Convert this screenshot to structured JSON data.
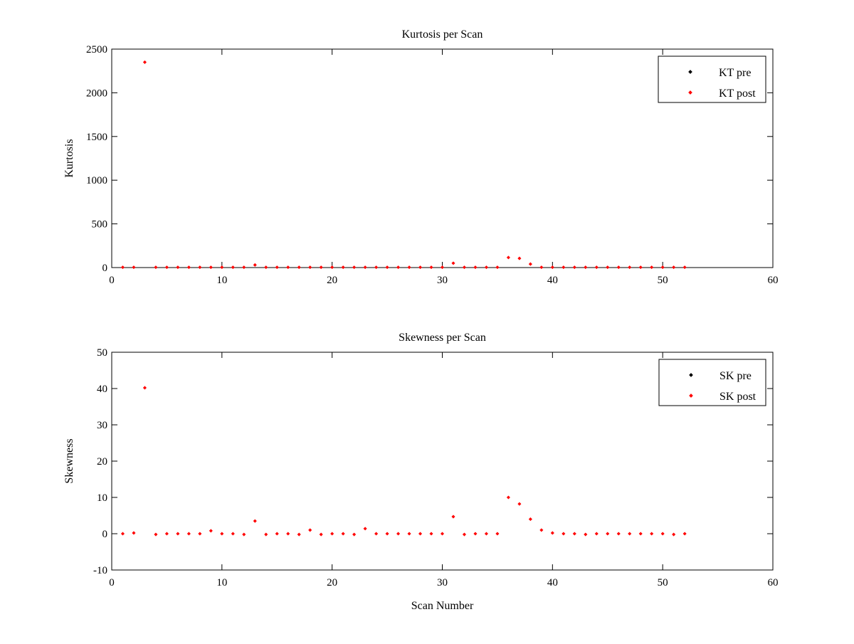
{
  "figure": {
    "background": "#ffffff"
  },
  "chart_data": [
    {
      "type": "scatter",
      "title": "Kurtosis per Scan",
      "xlabel": "",
      "ylabel": "Kurtosis",
      "xlim": [
        0,
        60
      ],
      "ylim": [
        0,
        2500
      ],
      "xticks": [
        0,
        10,
        20,
        30,
        40,
        50,
        60
      ],
      "yticks": [
        0,
        500,
        1000,
        1500,
        2000,
        2500
      ],
      "grid": false,
      "legend_position": "top-right",
      "series": [
        {
          "name": "KT pre",
          "color": "#000000",
          "x": [],
          "y": []
        },
        {
          "name": "KT post",
          "color": "#ff0000",
          "x": [
            1,
            2,
            3,
            4,
            5,
            6,
            7,
            8,
            9,
            10,
            11,
            12,
            13,
            14,
            15,
            16,
            17,
            18,
            19,
            20,
            21,
            22,
            23,
            24,
            25,
            26,
            27,
            28,
            29,
            30,
            31,
            32,
            33,
            34,
            35,
            36,
            37,
            38,
            39,
            40,
            41,
            42,
            43,
            44,
            45,
            46,
            47,
            48,
            49,
            50,
            51,
            52
          ],
          "y": [
            3,
            3,
            2350,
            3,
            3,
            3,
            3,
            3,
            3,
            3,
            3,
            3,
            30,
            3,
            3,
            3,
            3,
            3,
            3,
            3,
            3,
            3,
            3,
            3,
            3,
            3,
            3,
            3,
            3,
            3,
            50,
            3,
            3,
            3,
            3,
            115,
            105,
            40,
            3,
            3,
            3,
            3,
            3,
            3,
            3,
            3,
            3,
            3,
            3,
            3,
            3,
            3
          ]
        }
      ]
    },
    {
      "type": "scatter",
      "title": "Skewness per Scan",
      "xlabel": "Scan Number",
      "ylabel": "Skewness",
      "xlim": [
        0,
        60
      ],
      "ylim": [
        -10,
        50
      ],
      "xticks": [
        0,
        10,
        20,
        30,
        40,
        50,
        60
      ],
      "yticks": [
        -10,
        0,
        10,
        20,
        30,
        40,
        50
      ],
      "grid": false,
      "legend_position": "top-right",
      "series": [
        {
          "name": "SK pre",
          "color": "#000000",
          "x": [],
          "y": []
        },
        {
          "name": "SK post",
          "color": "#ff0000",
          "x": [
            1,
            2,
            3,
            4,
            5,
            6,
            7,
            8,
            9,
            10,
            11,
            12,
            13,
            14,
            15,
            16,
            17,
            18,
            19,
            20,
            21,
            22,
            23,
            24,
            25,
            26,
            27,
            28,
            29,
            30,
            31,
            32,
            33,
            34,
            35,
            36,
            37,
            38,
            39,
            40,
            41,
            42,
            43,
            44,
            45,
            46,
            47,
            48,
            49,
            50,
            51,
            52
          ],
          "y": [
            0,
            0.2,
            40.2,
            -0.2,
            0,
            0,
            0,
            0,
            0.8,
            0,
            0,
            -0.2,
            3.5,
            -0.2,
            0,
            0,
            -0.2,
            1,
            -0.2,
            0,
            0,
            -0.2,
            1.4,
            0,
            0,
            0,
            0,
            0,
            0,
            0,
            4.7,
            -0.2,
            0,
            0,
            0,
            10,
            8.2,
            4,
            1,
            0.2,
            0,
            0,
            -0.2,
            0,
            0,
            0,
            0,
            0,
            0,
            0,
            -0.2,
            0
          ]
        }
      ]
    }
  ]
}
